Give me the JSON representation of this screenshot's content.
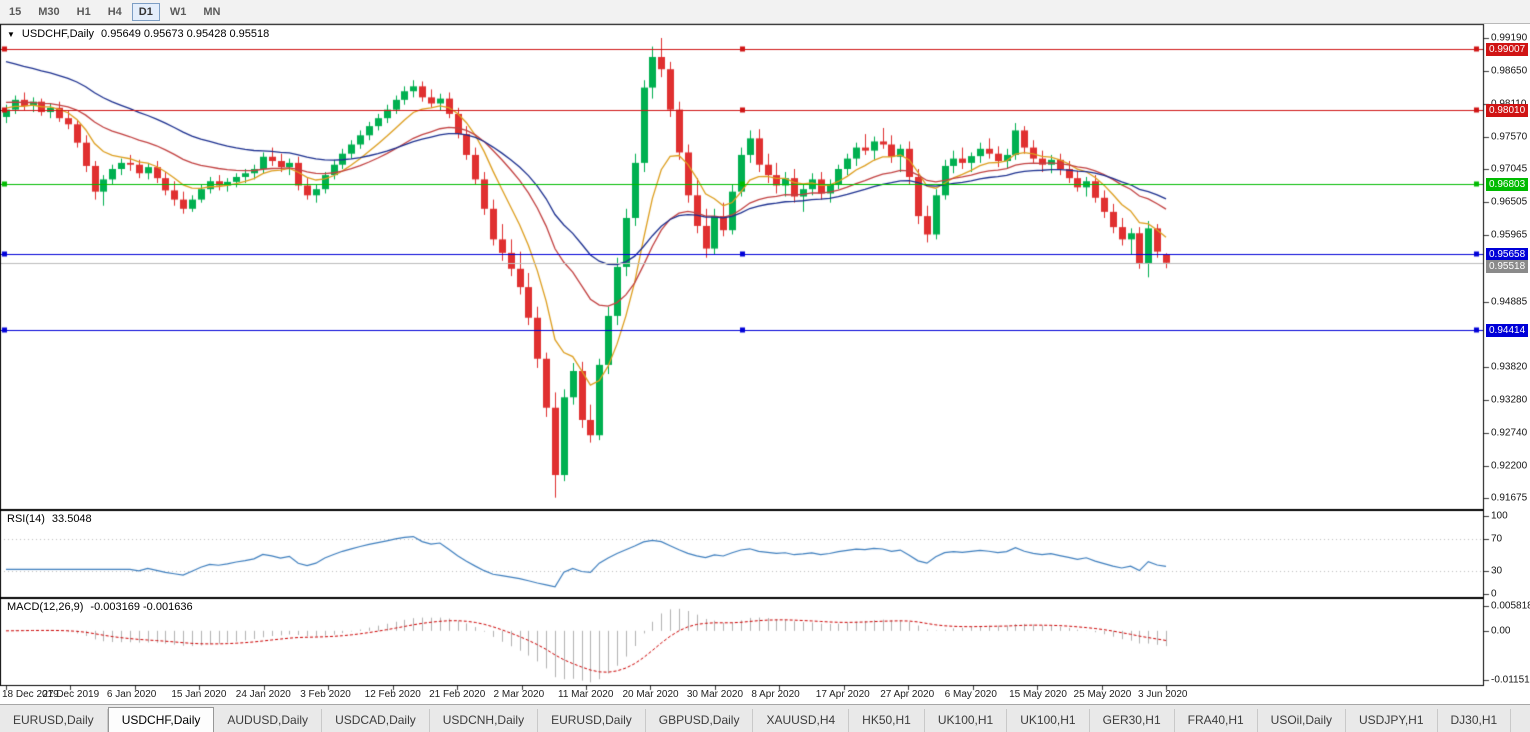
{
  "toolbar": {
    "timeframes": [
      "15",
      "M30",
      "H1",
      "H4",
      "D1",
      "W1",
      "MN"
    ],
    "active": "D1"
  },
  "chart": {
    "symbol": "USDCHF,Daily",
    "ohlc_text": "0.95649 0.95673 0.95428 0.95518"
  },
  "price_axis": {
    "labels": [
      "0.99190",
      "0.98650",
      "0.98110",
      "0.97570",
      "0.97045",
      "0.96505",
      "0.95965",
      "0.94885",
      "0.93820",
      "0.93280",
      "0.92740",
      "0.92200",
      "0.91675"
    ]
  },
  "rsi": {
    "title": "RSI(14)",
    "value": "33.5048",
    "period": 14,
    "color": "#3d7ebe",
    "levels": [
      70,
      30
    ],
    "axis": [
      {
        "text": "100",
        "value": 100
      },
      {
        "text": "70",
        "value": 70
      },
      {
        "text": "30",
        "value": 30
      },
      {
        "text": "0",
        "value": 0
      }
    ]
  },
  "macd": {
    "title": "MACD(12,26,9)",
    "values_text": "-0.003169 -0.001636",
    "fast": 12,
    "slow": 26,
    "signal": 9,
    "hist_color": "#b2b2b2",
    "signal_color": "#cc0000",
    "axis": [
      {
        "text": "0.005818",
        "value": 0.005818
      },
      {
        "text": "0.00",
        "value": 0
      },
      {
        "text": "-0.01151",
        "value": -0.01151
      }
    ],
    "scale_top": 0.005818,
    "scale_bottom": -0.01151
  },
  "chart_data": {
    "type": "candlestick",
    "symbol": "USDCHF",
    "timeframe": "Daily",
    "title": "USDCHF,Daily",
    "price_range": {
      "top": 0.9919,
      "bottom": 0.91675
    },
    "up_color": "#00b050",
    "down_color": "#e03030",
    "x_labels": [
      "18 Dec 2019",
      "27 Dec 2019",
      "6 Jan 2020",
      "15 Jan 2020",
      "24 Jan 2020",
      "3 Feb 2020",
      "12 Feb 2020",
      "21 Feb 2020",
      "2 Mar 2020",
      "11 Mar 2020",
      "20 Mar 2020",
      "30 Mar 2020",
      "8 Apr 2020",
      "17 Apr 2020",
      "27 Apr 2020",
      "6 May 2020",
      "15 May 2020",
      "25 May 2020",
      "3 Jun 2020"
    ],
    "candles": [
      [
        0.979,
        0.981,
        0.978,
        0.9802
      ],
      [
        0.9802,
        0.9825,
        0.9795,
        0.9818
      ],
      [
        0.9818,
        0.983,
        0.98,
        0.9808
      ],
      [
        0.9808,
        0.9822,
        0.9798,
        0.9815
      ],
      [
        0.9815,
        0.982,
        0.9792,
        0.9798
      ],
      [
        0.9798,
        0.9812,
        0.9788,
        0.9805
      ],
      [
        0.9805,
        0.9815,
        0.9782,
        0.9788
      ],
      [
        0.9788,
        0.98,
        0.977,
        0.9778
      ],
      [
        0.9778,
        0.9785,
        0.974,
        0.9748
      ],
      [
        0.9748,
        0.976,
        0.97,
        0.971
      ],
      [
        0.971,
        0.9718,
        0.9655,
        0.9668
      ],
      [
        0.9668,
        0.9695,
        0.9645,
        0.9688
      ],
      [
        0.9688,
        0.9712,
        0.968,
        0.9705
      ],
      [
        0.9705,
        0.9722,
        0.9695,
        0.9715
      ],
      [
        0.9715,
        0.9728,
        0.9702,
        0.9712
      ],
      [
        0.9712,
        0.972,
        0.969,
        0.9698
      ],
      [
        0.9698,
        0.9715,
        0.9688,
        0.9708
      ],
      [
        0.9708,
        0.9718,
        0.9682,
        0.969
      ],
      [
        0.969,
        0.97,
        0.9662,
        0.967
      ],
      [
        0.967,
        0.9685,
        0.9645,
        0.9655
      ],
      [
        0.9655,
        0.9668,
        0.9632,
        0.964
      ],
      [
        0.964,
        0.9662,
        0.9635,
        0.9655
      ],
      [
        0.9655,
        0.968,
        0.965,
        0.9672
      ],
      [
        0.9672,
        0.9692,
        0.9665,
        0.9685
      ],
      [
        0.9685,
        0.9695,
        0.967,
        0.9678
      ],
      [
        0.9678,
        0.969,
        0.9668,
        0.9684
      ],
      [
        0.9684,
        0.9698,
        0.9675,
        0.9692
      ],
      [
        0.9692,
        0.9705,
        0.9682,
        0.9698
      ],
      [
        0.9698,
        0.9712,
        0.9688,
        0.9705
      ],
      [
        0.9705,
        0.9732,
        0.9698,
        0.9725
      ],
      [
        0.9725,
        0.974,
        0.971,
        0.9718
      ],
      [
        0.9718,
        0.973,
        0.97,
        0.9708
      ],
      [
        0.9708,
        0.9722,
        0.9695,
        0.9715
      ],
      [
        0.9715,
        0.9725,
        0.967,
        0.9678
      ],
      [
        0.9678,
        0.969,
        0.9655,
        0.9662
      ],
      [
        0.9662,
        0.968,
        0.965,
        0.9672
      ],
      [
        0.9672,
        0.97,
        0.9665,
        0.9695
      ],
      [
        0.9695,
        0.972,
        0.9688,
        0.9712
      ],
      [
        0.9712,
        0.9738,
        0.9705,
        0.973
      ],
      [
        0.973,
        0.9752,
        0.9722,
        0.9745
      ],
      [
        0.9745,
        0.9768,
        0.9738,
        0.976
      ],
      [
        0.976,
        0.9782,
        0.9752,
        0.9775
      ],
      [
        0.9775,
        0.9795,
        0.9768,
        0.9788
      ],
      [
        0.9788,
        0.981,
        0.978,
        0.9802
      ],
      [
        0.9802,
        0.9825,
        0.9795,
        0.9818
      ],
      [
        0.9818,
        0.984,
        0.981,
        0.9832
      ],
      [
        0.9832,
        0.985,
        0.9822,
        0.984
      ],
      [
        0.984,
        0.9848,
        0.9815,
        0.9822
      ],
      [
        0.9822,
        0.9835,
        0.9805,
        0.9812
      ],
      [
        0.9812,
        0.9828,
        0.98,
        0.982
      ],
      [
        0.982,
        0.983,
        0.9788,
        0.9795
      ],
      [
        0.9795,
        0.9805,
        0.9755,
        0.9762
      ],
      [
        0.9762,
        0.9775,
        0.972,
        0.9728
      ],
      [
        0.9728,
        0.974,
        0.968,
        0.9688
      ],
      [
        0.9688,
        0.97,
        0.963,
        0.964
      ],
      [
        0.964,
        0.9655,
        0.958,
        0.959
      ],
      [
        0.959,
        0.9615,
        0.9555,
        0.9568
      ],
      [
        0.9568,
        0.959,
        0.953,
        0.9542
      ],
      [
        0.9542,
        0.957,
        0.95,
        0.9512
      ],
      [
        0.9512,
        0.9535,
        0.945,
        0.9462
      ],
      [
        0.9462,
        0.948,
        0.938,
        0.9395
      ],
      [
        0.9395,
        0.9405,
        0.93,
        0.9315
      ],
      [
        0.9315,
        0.934,
        0.9168,
        0.9205
      ],
      [
        0.9205,
        0.9345,
        0.9195,
        0.9332
      ],
      [
        0.9332,
        0.9388,
        0.932,
        0.9375
      ],
      [
        0.9375,
        0.939,
        0.9282,
        0.9295
      ],
      [
        0.9295,
        0.932,
        0.9258,
        0.927
      ],
      [
        0.927,
        0.9395,
        0.9262,
        0.9385
      ],
      [
        0.9385,
        0.948,
        0.937,
        0.9465
      ],
      [
        0.9465,
        0.956,
        0.945,
        0.9545
      ],
      [
        0.9545,
        0.964,
        0.953,
        0.9625
      ],
      [
        0.9625,
        0.973,
        0.9612,
        0.9715
      ],
      [
        0.9715,
        0.985,
        0.97,
        0.9838
      ],
      [
        0.9838,
        0.9905,
        0.982,
        0.9888
      ],
      [
        0.9888,
        0.9919,
        0.9855,
        0.9868
      ],
      [
        0.9868,
        0.988,
        0.979,
        0.9802
      ],
      [
        0.9802,
        0.9815,
        0.972,
        0.9732
      ],
      [
        0.9732,
        0.9745,
        0.965,
        0.9662
      ],
      [
        0.9662,
        0.969,
        0.96,
        0.9612
      ],
      [
        0.9612,
        0.964,
        0.956,
        0.9575
      ],
      [
        0.9575,
        0.964,
        0.9565,
        0.9628
      ],
      [
        0.9628,
        0.965,
        0.9595,
        0.9605
      ],
      [
        0.9605,
        0.968,
        0.9598,
        0.9668
      ],
      [
        0.9668,
        0.974,
        0.966,
        0.9728
      ],
      [
        0.9728,
        0.9768,
        0.9715,
        0.9755
      ],
      [
        0.9755,
        0.977,
        0.97,
        0.9712
      ],
      [
        0.9712,
        0.973,
        0.9682,
        0.9695
      ],
      [
        0.9695,
        0.9715,
        0.9665,
        0.9678
      ],
      [
        0.9678,
        0.97,
        0.966,
        0.969
      ],
      [
        0.969,
        0.9705,
        0.965,
        0.966
      ],
      [
        0.966,
        0.968,
        0.9635,
        0.9672
      ],
      [
        0.9672,
        0.9698,
        0.9662,
        0.9688
      ],
      [
        0.9688,
        0.97,
        0.9655,
        0.9665
      ],
      [
        0.9665,
        0.9688,
        0.965,
        0.968
      ],
      [
        0.968,
        0.9712,
        0.9672,
        0.9705
      ],
      [
        0.9705,
        0.973,
        0.9695,
        0.9722
      ],
      [
        0.9722,
        0.9748,
        0.971,
        0.974
      ],
      [
        0.974,
        0.9762,
        0.9728,
        0.9735
      ],
      [
        0.9735,
        0.9758,
        0.972,
        0.975
      ],
      [
        0.975,
        0.9772,
        0.9738,
        0.9745
      ],
      [
        0.9745,
        0.976,
        0.9715,
        0.9725
      ],
      [
        0.9725,
        0.9745,
        0.97,
        0.9738
      ],
      [
        0.9738,
        0.975,
        0.968,
        0.9692
      ],
      [
        0.9692,
        0.9705,
        0.9615,
        0.9628
      ],
      [
        0.9628,
        0.9645,
        0.9585,
        0.9598
      ],
      [
        0.9598,
        0.9672,
        0.959,
        0.9662
      ],
      [
        0.9662,
        0.972,
        0.9655,
        0.971
      ],
      [
        0.971,
        0.9735,
        0.9698,
        0.9722
      ],
      [
        0.9722,
        0.974,
        0.9705,
        0.9715
      ],
      [
        0.9715,
        0.9732,
        0.97,
        0.9726
      ],
      [
        0.9726,
        0.9748,
        0.9715,
        0.9738
      ],
      [
        0.9738,
        0.9755,
        0.9722,
        0.973
      ],
      [
        0.973,
        0.9742,
        0.9708,
        0.9718
      ],
      [
        0.9718,
        0.9738,
        0.9705,
        0.9728
      ],
      [
        0.9728,
        0.978,
        0.972,
        0.9768
      ],
      [
        0.9768,
        0.9775,
        0.973,
        0.974
      ],
      [
        0.974,
        0.9752,
        0.9715,
        0.9722
      ],
      [
        0.9722,
        0.9735,
        0.97,
        0.9712
      ],
      [
        0.9712,
        0.9728,
        0.9698,
        0.972
      ],
      [
        0.972,
        0.973,
        0.9695,
        0.9705
      ],
      [
        0.9705,
        0.9718,
        0.9682,
        0.969
      ],
      [
        0.969,
        0.9702,
        0.9668,
        0.9675
      ],
      [
        0.9675,
        0.9692,
        0.966,
        0.9685
      ],
      [
        0.9685,
        0.9695,
        0.965,
        0.9658
      ],
      [
        0.9658,
        0.967,
        0.9625,
        0.9635
      ],
      [
        0.9635,
        0.9648,
        0.96,
        0.961
      ],
      [
        0.961,
        0.9625,
        0.958,
        0.959
      ],
      [
        0.959,
        0.9608,
        0.9565,
        0.96
      ],
      [
        0.96,
        0.961,
        0.9542,
        0.955
      ],
      [
        0.955,
        0.962,
        0.9528,
        0.9608
      ],
      [
        0.9608,
        0.9615,
        0.956,
        0.957
      ],
      [
        0.95649,
        0.95673,
        0.95428,
        0.95518
      ]
    ],
    "moving_averages": [
      {
        "name": "fast",
        "period": 8,
        "color": "#dd9e1e",
        "seed": 0.9805
      },
      {
        "name": "mid",
        "period": 21,
        "color": "#c24040",
        "seed": 0.9815
      },
      {
        "name": "slow",
        "period": 34,
        "color": "#1b2f8f",
        "seed": 0.9885
      }
    ],
    "hlines": [
      {
        "value": 0.99007,
        "label": "0.99007",
        "color": "#d01414"
      },
      {
        "value": 0.9801,
        "label": "0.98010",
        "color": "#d01414"
      },
      {
        "value": 0.96803,
        "label": "0.96803",
        "color": "#00bb00"
      },
      {
        "value": 0.95658,
        "label": "0.95658",
        "color": "#0000d8"
      },
      {
        "value": 0.94414,
        "label": "0.94414",
        "color": "#0000d8"
      }
    ],
    "current_price": {
      "value": 0.95518,
      "label": "0.95518",
      "badge_color": "#8a8a8a",
      "line_color": "#bcbcbc"
    }
  },
  "tabs": {
    "active_index": 1,
    "items": [
      "EURUSD,Daily",
      "USDCHF,Daily",
      "AUDUSD,Daily",
      "USDCAD,Daily",
      "USDCNH,Daily",
      "EURUSD,Daily",
      "GBPUSD,Daily",
      "XAUUSD,H4",
      "HK50,H1",
      "UK100,H1",
      "UK100,H1",
      "GER30,H1",
      "FRA40,H1",
      "USOil,Daily",
      "USDJPY,H1",
      "DJ30,H1"
    ]
  }
}
